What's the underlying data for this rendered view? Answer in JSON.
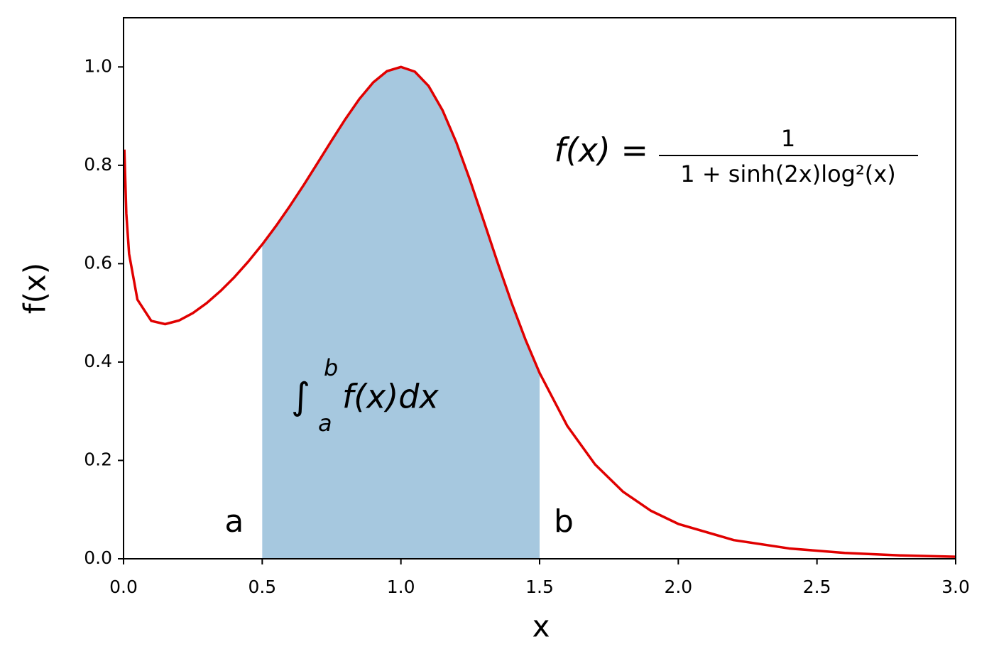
{
  "chart_data": {
    "type": "line",
    "xlabel": "x",
    "ylabel": "f(x)",
    "x": [
      0.003,
      0.01,
      0.02,
      0.05,
      0.1,
      0.15,
      0.2,
      0.25,
      0.3,
      0.35,
      0.4,
      0.45,
      0.5,
      0.55,
      0.6,
      0.65,
      0.7,
      0.75,
      0.8,
      0.85,
      0.9,
      0.95,
      1.0,
      1.05,
      1.1,
      1.15,
      1.2,
      1.25,
      1.3,
      1.35,
      1.4,
      1.45,
      1.5,
      1.6,
      1.7,
      1.8,
      1.9,
      2.0,
      2.2,
      2.4,
      2.6,
      2.8,
      3.0
    ],
    "series": [
      {
        "color": "#e00000",
        "values": [
          0.832,
          0.702,
          0.62,
          0.527,
          0.4837,
          0.4771,
          0.4845,
          0.4996,
          0.52,
          0.5446,
          0.5728,
          0.6044,
          0.6391,
          0.6769,
          0.7175,
          0.7603,
          0.805,
          0.8502,
          0.8942,
          0.9347,
          0.9684,
          0.9915,
          1.0,
          0.9905,
          0.9611,
          0.912,
          0.8462,
          0.7685,
          0.6846,
          0.5999,
          0.5189,
          0.4443,
          0.3778,
          0.2699,
          0.1918,
          0.1367,
          0.098,
          0.0709,
          0.038,
          0.021,
          0.0119,
          0.00693,
          0.00409
        ]
      }
    ],
    "shade": {
      "from": 0.5,
      "to": 1.5,
      "color": "#a6c8df"
    },
    "bound_labels": [
      "a",
      "b"
    ],
    "integral": {
      "symbol": "∫",
      "upper": "b",
      "lower": "a",
      "integrand": "f(x)dx"
    },
    "formula": {
      "lhs": "f(x) =",
      "numerator": "1",
      "denominator": "1 + sinh(2x)log²(x)"
    },
    "xlim": [
      0,
      3.0
    ],
    "ylim": [
      0,
      1.1
    ],
    "xticks": [
      {
        "value": 0,
        "label": "0.0"
      },
      0.5,
      {
        "value": 1,
        "label": "1.0"
      },
      1.5,
      {
        "value": 2,
        "label": "2.0"
      },
      2.5,
      {
        "value": 3,
        "label": "3.0"
      }
    ],
    "yticks": [
      {
        "value": 0,
        "label": "0.0"
      },
      0.2,
      0.4,
      0.6,
      0.8,
      {
        "value": 1,
        "label": "1.0"
      }
    ],
    "grid": false
  }
}
